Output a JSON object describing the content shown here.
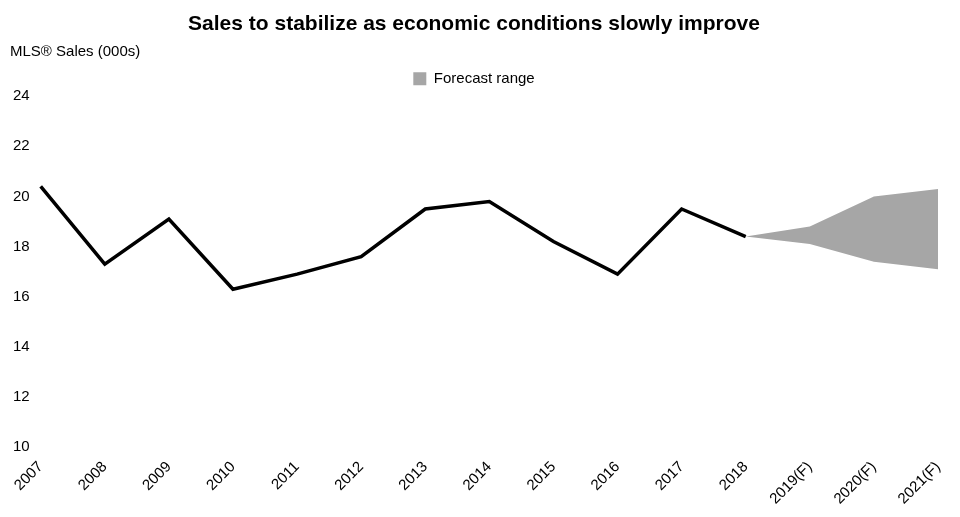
{
  "chart_data": {
    "type": "line",
    "title": "Sales to stabilize as economic conditions slowly improve",
    "y_label": "MLS® Sales (000s)",
    "categories": [
      "2007",
      "2008",
      "2009",
      "2010",
      "2011",
      "2012",
      "2013",
      "2014",
      "2015",
      "2016",
      "2017",
      "2018",
      "2019(F)",
      "2020(F)",
      "2021(F)"
    ],
    "series": [
      {
        "color": "#000000",
        "values": [
          20.4,
          17.3,
          19.1,
          16.3,
          16.9,
          17.6,
          19.5,
          19.8,
          18.2,
          16.9,
          19.5,
          18.4,
          null,
          null,
          null
        ]
      },
      {
        "name": "Forecast range",
        "type": "range",
        "color": "#a6a6a6",
        "upper": [
          null,
          null,
          null,
          null,
          null,
          null,
          null,
          null,
          null,
          null,
          null,
          18.4,
          18.8,
          20.0,
          20.3
        ],
        "lower": [
          null,
          null,
          null,
          null,
          null,
          null,
          null,
          null,
          null,
          null,
          null,
          18.4,
          18.1,
          17.4,
          17.1
        ]
      }
    ],
    "ylim": [
      10,
      24
    ],
    "yticks": [
      10,
      12,
      14,
      16,
      18,
      20,
      22,
      24
    ],
    "grid": false,
    "legend": "top"
  }
}
